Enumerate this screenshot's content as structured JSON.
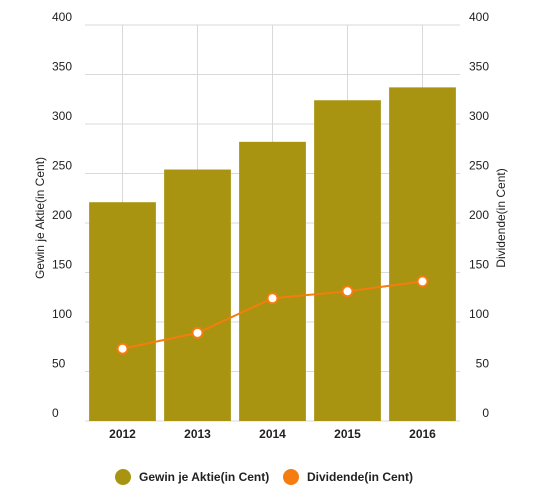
{
  "chart_data": {
    "type": "bar",
    "categories": [
      "2012",
      "2013",
      "2014",
      "2015",
      "2016"
    ],
    "series": [
      {
        "name": "Gewin je Aktie(in Cent)",
        "type": "bar",
        "axis": "left",
        "color": "#a89410",
        "values": [
          221,
          254,
          282,
          324,
          337
        ]
      },
      {
        "name": "Dividende(in Cent)",
        "type": "line",
        "axis": "right",
        "color": "#f57c0f",
        "values": [
          73,
          89,
          124,
          131,
          141
        ]
      }
    ],
    "ylabel": "Gewin je Aktie(in Cent)",
    "y2label": "Dividende(in Cent)",
    "ylim": [
      0,
      400
    ],
    "y2lim": [
      0,
      400
    ],
    "yticks": [
      "0",
      "50",
      "100",
      "150",
      "200",
      "250",
      "300",
      "350",
      "400"
    ],
    "y2ticks": [
      "0",
      "50",
      "100",
      "150",
      "200",
      "250",
      "300",
      "350",
      "400"
    ],
    "grid": true,
    "legend": "bottom"
  }
}
